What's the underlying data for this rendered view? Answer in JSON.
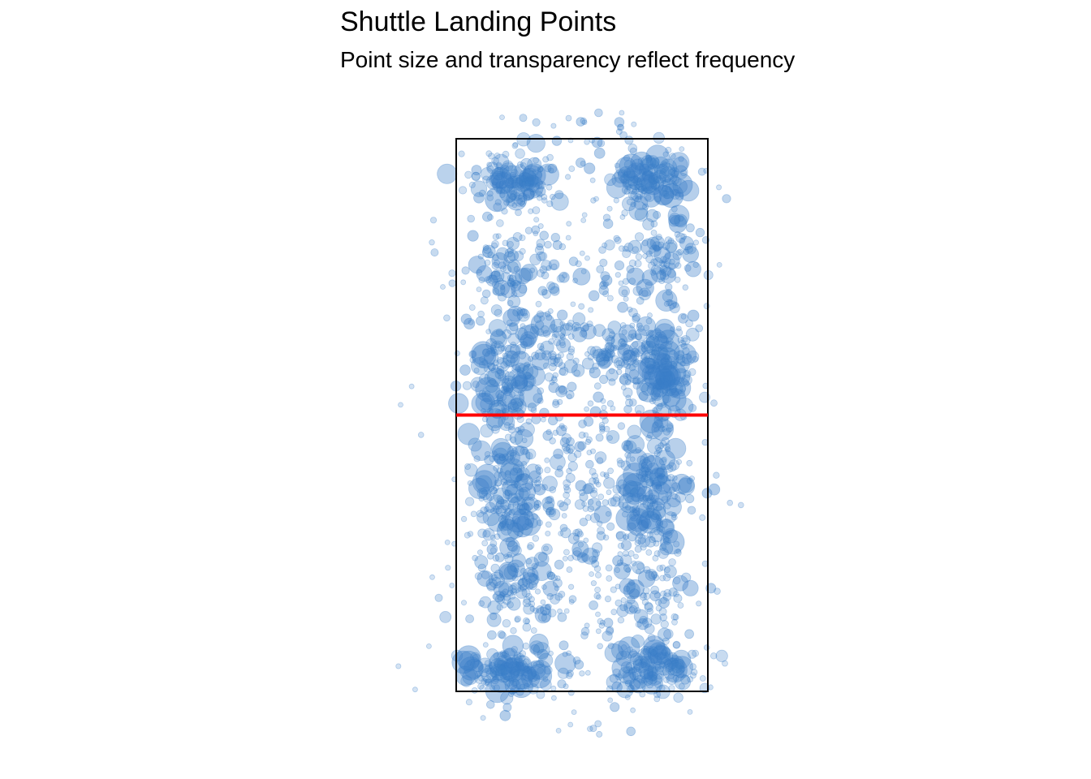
{
  "chart_data": {
    "type": "scatter",
    "title": "Shuttle Landing Points",
    "subtitle": "Point size and transparency reflect frequency",
    "xlabel": "",
    "ylabel": "",
    "axes_visible": false,
    "grid": false,
    "legend": "none",
    "court": {
      "width": 6.1,
      "length": 13.4,
      "net_y": 6.7,
      "boundary_color": "#000000",
      "net_color": "#ff0000"
    },
    "point_color": "#3a7ec8",
    "clusters": [
      {
        "x": 1.35,
        "y": 12.4,
        "sx": 0.45,
        "sy": 0.35,
        "n": 130,
        "weight": "high"
      },
      {
        "x": 4.75,
        "y": 12.4,
        "sx": 0.45,
        "sy": 0.35,
        "n": 130,
        "weight": "high"
      },
      {
        "x": 1.3,
        "y": 0.55,
        "sx": 0.55,
        "sy": 0.3,
        "n": 130,
        "weight": "high"
      },
      {
        "x": 4.85,
        "y": 0.55,
        "sx": 0.55,
        "sy": 0.3,
        "n": 130,
        "weight": "high"
      },
      {
        "x": 1.2,
        "y": 7.6,
        "sx": 0.35,
        "sy": 0.7,
        "n": 140,
        "weight": "high"
      },
      {
        "x": 5.0,
        "y": 7.6,
        "sx": 0.35,
        "sy": 0.7,
        "n": 140,
        "weight": "high"
      },
      {
        "x": 1.3,
        "y": 4.8,
        "sx": 0.45,
        "sy": 0.85,
        "n": 150,
        "weight": "high"
      },
      {
        "x": 4.8,
        "y": 4.8,
        "sx": 0.4,
        "sy": 0.8,
        "n": 150,
        "weight": "high"
      },
      {
        "x": 1.3,
        "y": 10.2,
        "sx": 0.5,
        "sy": 0.5,
        "n": 80,
        "weight": "medium"
      },
      {
        "x": 4.9,
        "y": 10.5,
        "sx": 0.45,
        "sy": 0.5,
        "n": 80,
        "weight": "medium"
      },
      {
        "x": 4.2,
        "y": 8.2,
        "sx": 0.4,
        "sy": 0.4,
        "n": 70,
        "weight": "medium"
      },
      {
        "x": 2.5,
        "y": 8.4,
        "sx": 0.6,
        "sy": 0.5,
        "n": 60,
        "weight": "medium"
      },
      {
        "x": 1.5,
        "y": 2.4,
        "sx": 0.55,
        "sy": 0.6,
        "n": 80,
        "weight": "medium"
      },
      {
        "x": 4.7,
        "y": 2.4,
        "sx": 0.55,
        "sy": 0.6,
        "n": 80,
        "weight": "medium"
      },
      {
        "x": 3.05,
        "y": 4.6,
        "sx": 0.7,
        "sy": 0.6,
        "n": 60,
        "weight": "medium"
      },
      {
        "x": 3.05,
        "y": 6.7,
        "sx": 1.6,
        "sy": 5.2,
        "n": 700,
        "weight": "low"
      },
      {
        "x": 3.05,
        "y": 6.7,
        "sx": 1.9,
        "sy": 6.3,
        "n": 110,
        "weight": "low"
      }
    ]
  }
}
